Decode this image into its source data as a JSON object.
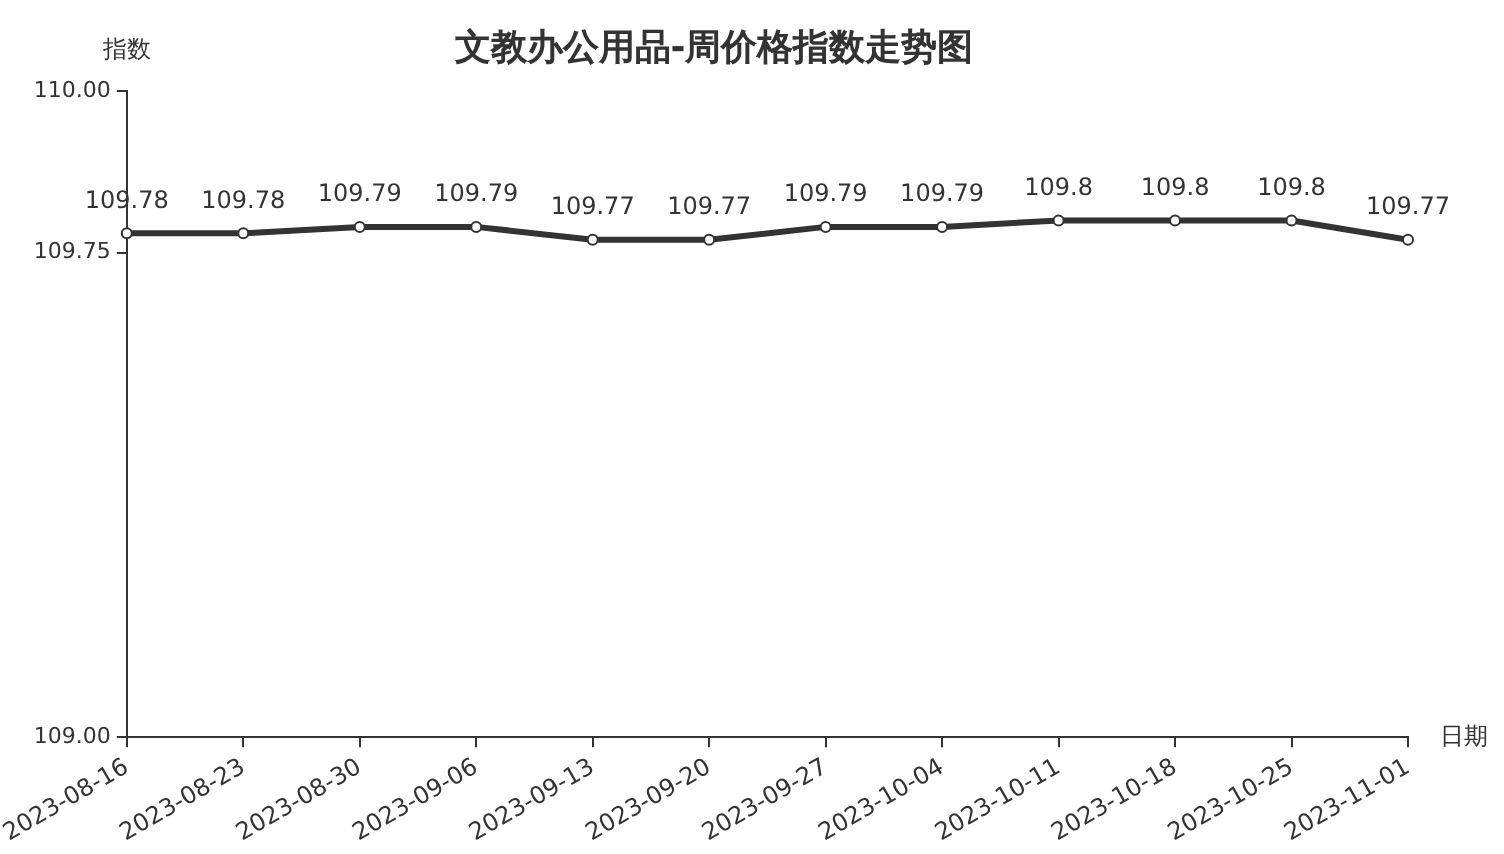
{
  "chart_data": {
    "type": "line",
    "title": "文教办公用品-周价格指数走势图",
    "xlabel": "日期",
    "ylabel": "指数",
    "categories": [
      "2023-08-16",
      "2023-08-23",
      "2023-08-30",
      "2023-09-06",
      "2023-09-13",
      "2023-09-20",
      "2023-09-27",
      "2023-10-04",
      "2023-10-11",
      "2023-10-18",
      "2023-10-25",
      "2023-11-01"
    ],
    "series": [
      {
        "color": "#333333",
        "values": [
          109.78,
          109.78,
          109.79,
          109.79,
          109.77,
          109.77,
          109.79,
          109.79,
          109.8,
          109.8,
          109.8,
          109.77
        ]
      }
    ],
    "ylim": [
      109,
      110
    ],
    "yticks": [
      {
        "value": 109,
        "label": "109.00"
      },
      {
        "value": 109.75,
        "label": "109.75"
      },
      {
        "value": 110,
        "label": "110.00"
      }
    ],
    "grid": false,
    "legend": false,
    "marker": "circle",
    "line_style": "solid",
    "data_labels": true
  }
}
